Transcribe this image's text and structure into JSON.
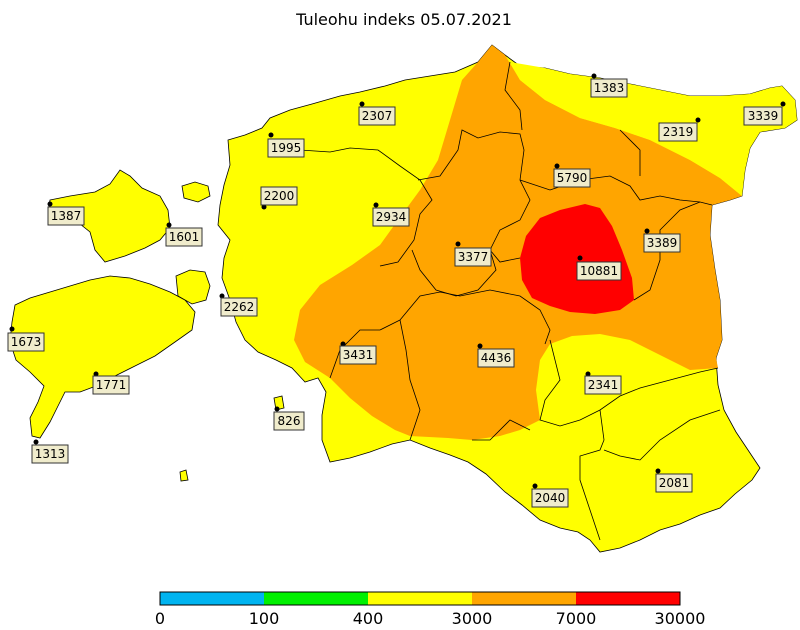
{
  "title": "Tuleohu indeks 05.07.2021",
  "colors": {
    "land_low": "#ffff00",
    "land_mid": "#ffa500",
    "land_high": "#ff0000",
    "border": "#000000",
    "label_box": "#f0eccc"
  },
  "stations": [
    {
      "value": "1383"
    },
    {
      "value": "3339"
    },
    {
      "value": "2307"
    },
    {
      "value": "2319"
    },
    {
      "value": "1995"
    },
    {
      "value": "5790"
    },
    {
      "value": "2200"
    },
    {
      "value": "1387"
    },
    {
      "value": "2934"
    },
    {
      "value": "1601"
    },
    {
      "value": "3389"
    },
    {
      "value": "3377"
    },
    {
      "value": "10881"
    },
    {
      "value": "2262"
    },
    {
      "value": "1673"
    },
    {
      "value": "3431"
    },
    {
      "value": "4436"
    },
    {
      "value": "2341"
    },
    {
      "value": "1771"
    },
    {
      "value": "826"
    },
    {
      "value": "1313"
    },
    {
      "value": "2040"
    },
    {
      "value": "2081"
    }
  ],
  "legend": {
    "ticks": [
      "0",
      "100",
      "400",
      "3000",
      "7000",
      "30000"
    ],
    "colors": [
      "#00b4f0",
      "#00f000",
      "#ffff00",
      "#ffa500",
      "#ff0000"
    ]
  }
}
